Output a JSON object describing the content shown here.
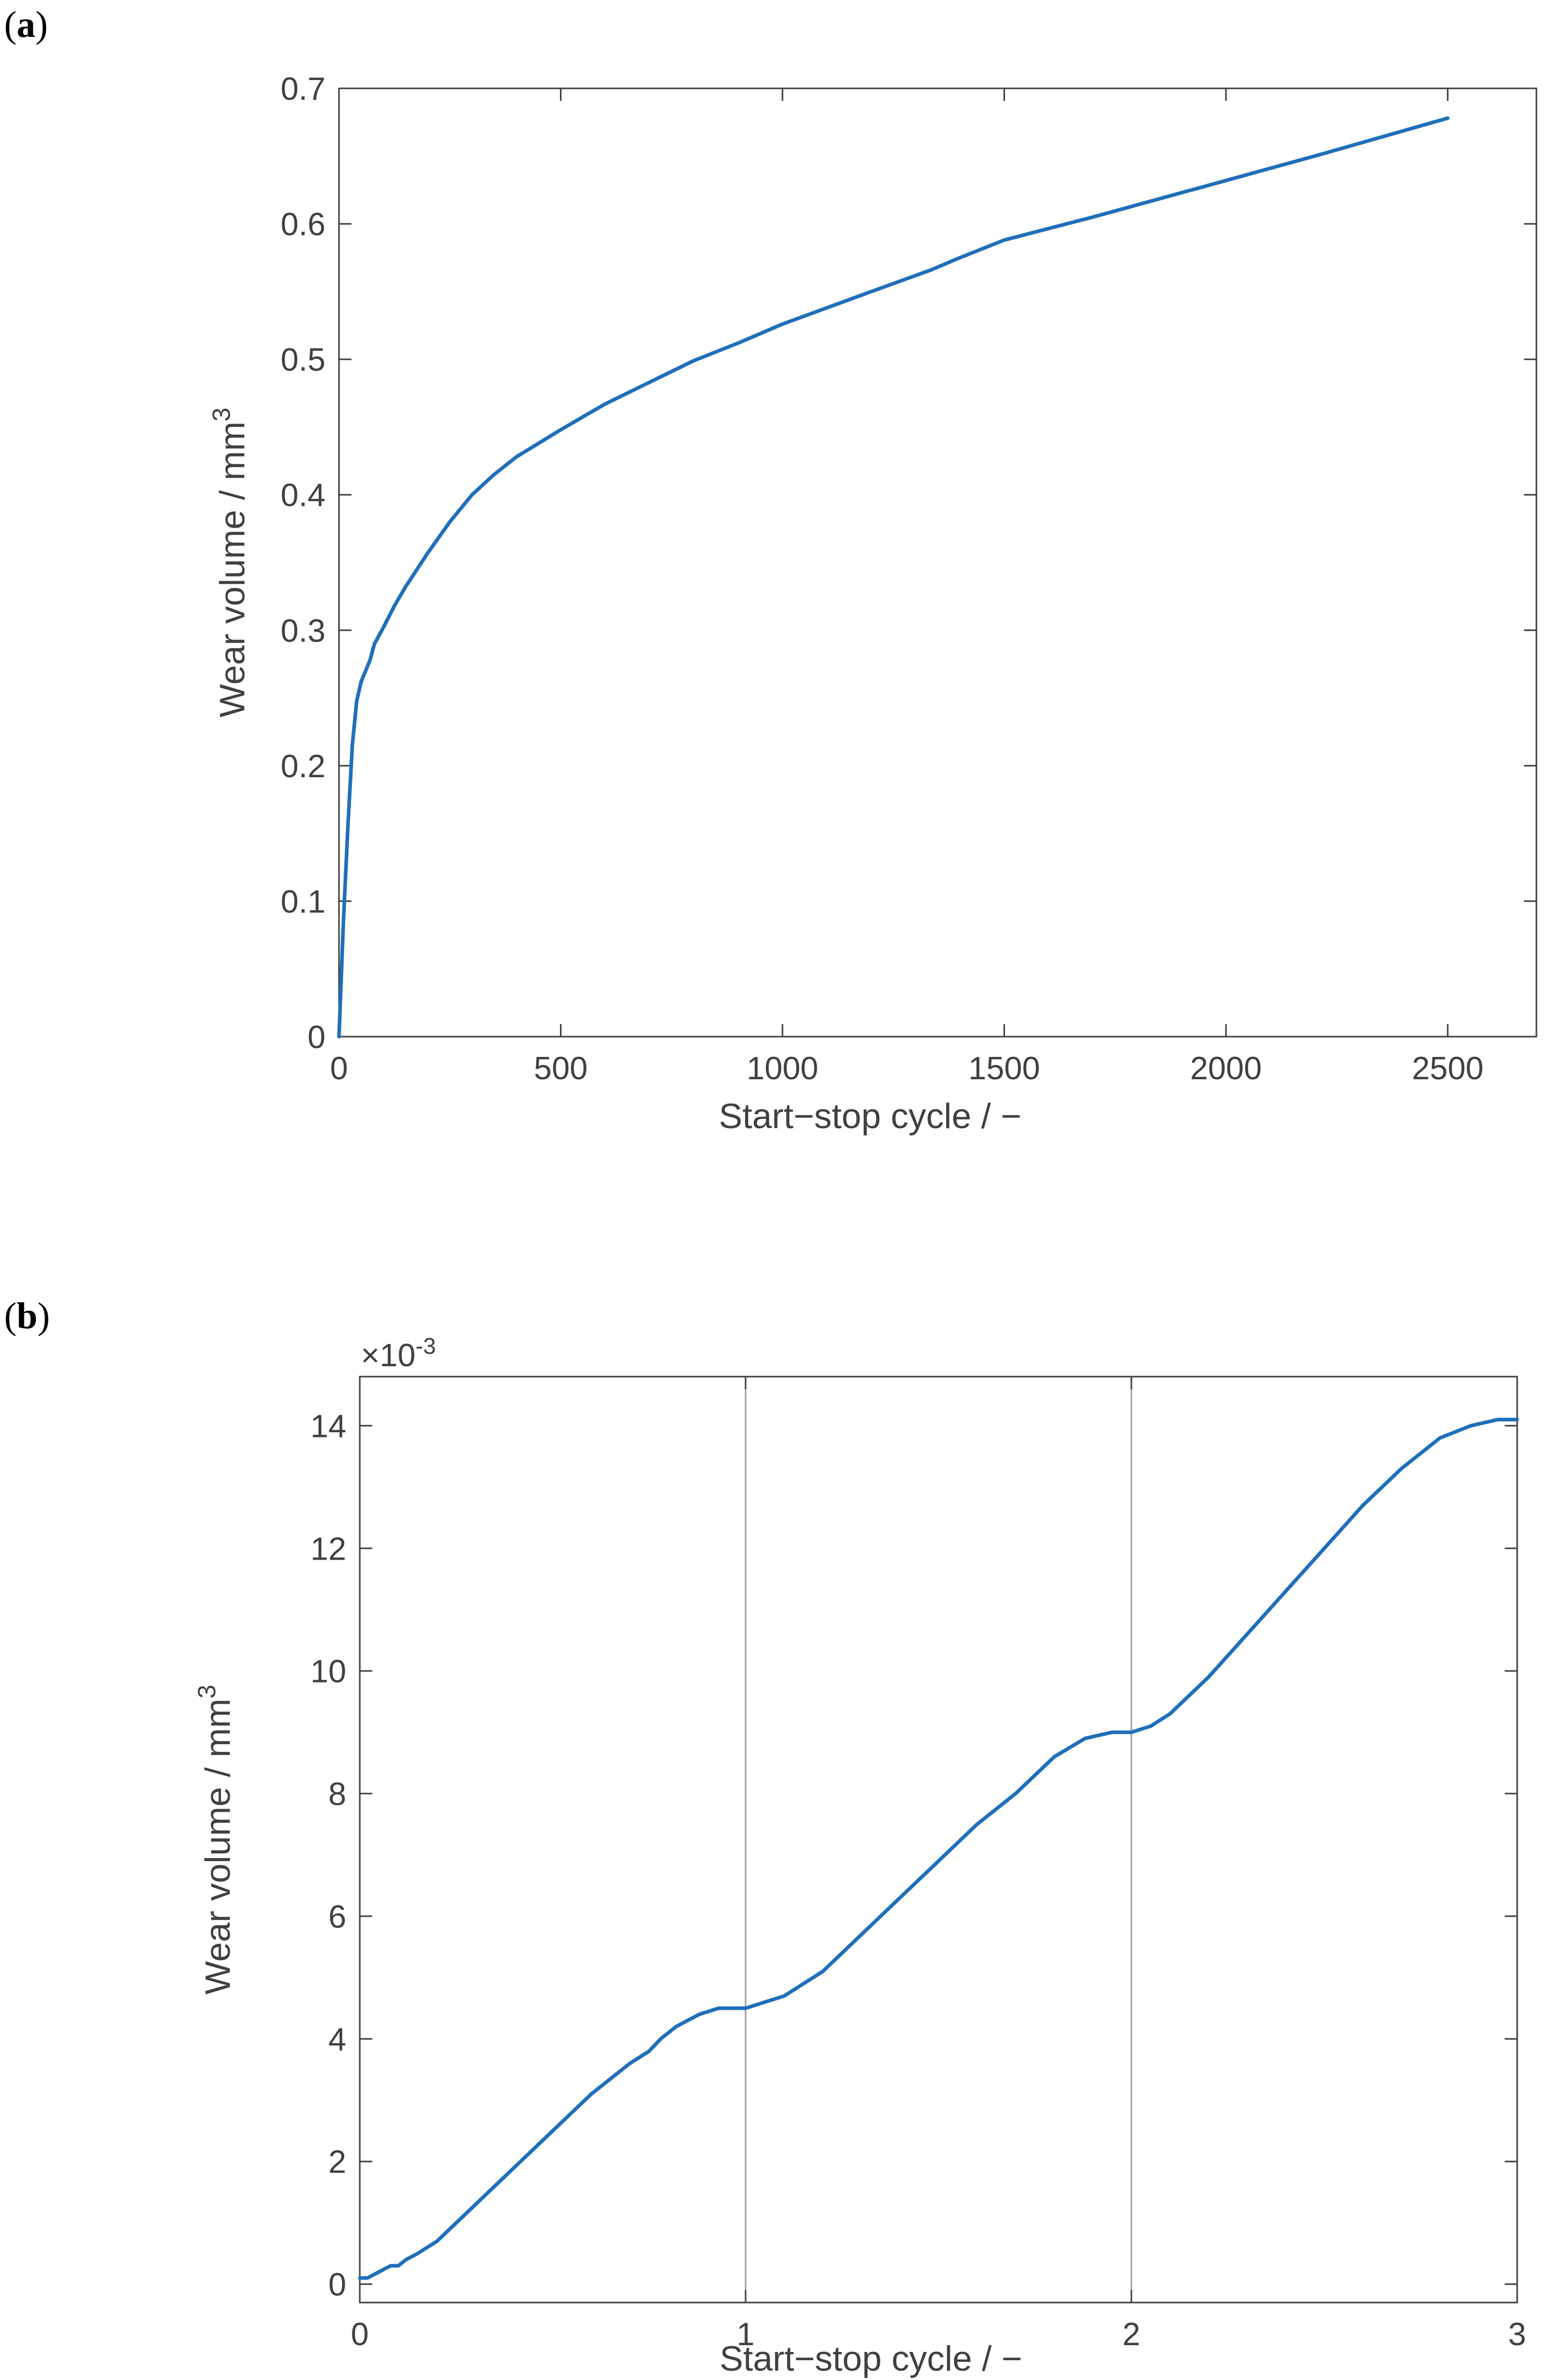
{
  "panels": [
    {
      "label_open": "(",
      "label_letter": "a",
      "label_close": ")"
    },
    {
      "label_open": "(",
      "label_letter": "b",
      "label_close": ")"
    }
  ],
  "colors": {
    "line": "#1f6fba",
    "axis": "#404040",
    "guide": "#a0a0a0"
  },
  "chart_data": [
    {
      "type": "line",
      "xlabel": "Start−stop cycle / −",
      "ylabel": "Wear volume / mm",
      "ylabel_sup": "3",
      "xlim": [
        0,
        2700
      ],
      "ylim": [
        0,
        0.7
      ],
      "xticks": [
        0,
        500,
        1000,
        1500,
        2000,
        2500
      ],
      "xtick_labels": [
        "0",
        "500",
        "1000",
        "1500",
        "2000",
        "2500"
      ],
      "yticks": [
        0,
        0.1,
        0.2,
        0.3,
        0.4,
        0.5,
        0.6,
        0.7
      ],
      "ytick_labels": [
        "0",
        "0.1",
        "0.2",
        "0.3",
        "0.4",
        "0.5",
        "0.6",
        "0.7"
      ],
      "grid": false,
      "series": [
        {
          "x": [
            0,
            10,
            20,
            30,
            40,
            50,
            60,
            70,
            80,
            85,
            100,
            125,
            150,
            200,
            250,
            300,
            350,
            400,
            500,
            600,
            700,
            800,
            900,
            1000,
            1100,
            1200,
            1335,
            1400,
            1500,
            1700,
            2000,
            2200,
            2500
          ],
          "y": [
            0,
            0.085,
            0.155,
            0.215,
            0.248,
            0.262,
            0.27,
            0.278,
            0.29,
            0.293,
            0.302,
            0.318,
            0.332,
            0.357,
            0.38,
            0.4,
            0.415,
            0.428,
            0.448,
            0.467,
            0.483,
            0.499,
            0.512,
            0.526,
            0.538,
            0.55,
            0.566,
            0.575,
            0.588,
            0.605,
            0.632,
            0.65,
            0.678
          ]
        }
      ]
    },
    {
      "type": "line",
      "xlabel": "Start−stop cycle / −",
      "ylabel": "Wear volume / mm",
      "ylabel_sup": "3",
      "exponent_label": "×10",
      "exponent_power": "-3",
      "xlim": [
        0,
        3
      ],
      "ylim": [
        -0.0003,
        0.0148
      ],
      "xticks": [
        0,
        1,
        2,
        3
      ],
      "xtick_labels": [
        "0",
        "1",
        "2",
        "3"
      ],
      "yticks": [
        0,
        0.002,
        0.004,
        0.006,
        0.008,
        0.01,
        0.012,
        0.014
      ],
      "ytick_labels": [
        "0",
        "2",
        "4",
        "6",
        "8",
        "10",
        "12",
        "14"
      ],
      "vlines": [
        1,
        2
      ],
      "grid": false,
      "series": [
        {
          "x": [
            0,
            0.02,
            0.05,
            0.08,
            0.1,
            0.12,
            0.15,
            0.2,
            0.3,
            0.4,
            0.5,
            0.55,
            0.6,
            0.7,
            0.75,
            0.78,
            0.82,
            0.88,
            0.93,
            1.0,
            1.05,
            1.1,
            1.2,
            1.3,
            1.4,
            1.5,
            1.55,
            1.6,
            1.7,
            1.75,
            1.8,
            1.88,
            1.95,
            2.0,
            2.05,
            2.1,
            2.2,
            2.3,
            2.4,
            2.5,
            2.6,
            2.7,
            2.8,
            2.88,
            2.95,
            3.0
          ],
          "y": [
            0.0001,
            0.0001,
            0.0002,
            0.0003,
            0.0003,
            0.0004,
            0.0005,
            0.0007,
            0.0013,
            0.0019,
            0.0025,
            0.0028,
            0.0031,
            0.0036,
            0.0038,
            0.004,
            0.0042,
            0.0044,
            0.0045,
            0.0045,
            0.0046,
            0.0047,
            0.0051,
            0.0057,
            0.0063,
            0.0069,
            0.0072,
            0.0075,
            0.008,
            0.0083,
            0.0086,
            0.0089,
            0.009,
            0.009,
            0.0091,
            0.0093,
            0.0099,
            0.0106,
            0.0113,
            0.012,
            0.0127,
            0.0133,
            0.0138,
            0.014,
            0.0141,
            0.0141
          ]
        }
      ]
    }
  ]
}
